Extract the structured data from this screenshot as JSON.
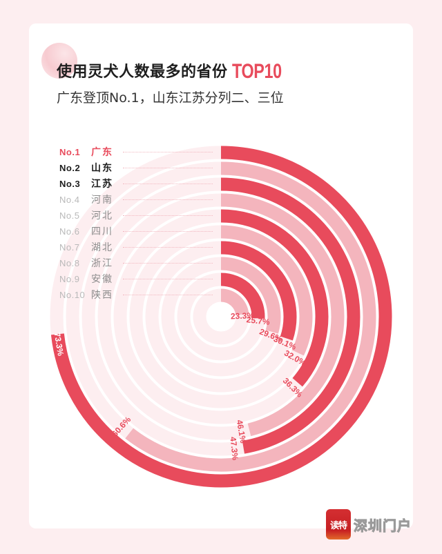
{
  "header": {
    "title": "使用灵犬人数最多的省份",
    "title_accent": "TOP10",
    "subtitle": "广东登顶No.1，山东江苏分列二、三位"
  },
  "ranking": [
    {
      "no": "No.1",
      "name": "广东",
      "style": "top1"
    },
    {
      "no": "No.2",
      "name": "山东",
      "style": "top3"
    },
    {
      "no": "No.3",
      "name": "江苏",
      "style": "top3"
    },
    {
      "no": "No.4",
      "name": "河南",
      "style": "rest"
    },
    {
      "no": "No.5",
      "name": "河北",
      "style": "rest"
    },
    {
      "no": "No.6",
      "name": "四川",
      "style": "rest"
    },
    {
      "no": "No.7",
      "name": "湖北",
      "style": "rest"
    },
    {
      "no": "No.8",
      "name": "浙江",
      "style": "rest"
    },
    {
      "no": "No.9",
      "name": "安徽",
      "style": "rest"
    },
    {
      "no": "No.10",
      "name": "陕西",
      "style": "rest"
    }
  ],
  "colors": {
    "dark_ring": "#e84b5c",
    "light_ring": "#f4b5bd",
    "track": "#fdeef0",
    "label": "#e84b5c",
    "top1_text": "#e84b5c",
    "top3_text": "#1e1e1e",
    "rest_text": "#b9b9b9",
    "rest_name": "#8c8c8c"
  },
  "chart_data": {
    "type": "radial-bar",
    "title": "使用灵犬人数最多的省份 TOP10",
    "subtitle": "广东登顶No.1，山东江苏分列二、三位",
    "categories": [
      "广东",
      "山东",
      "江苏",
      "河南",
      "河北",
      "四川",
      "湖北",
      "浙江",
      "安徽",
      "陕西"
    ],
    "values": [
      73.3,
      60.6,
      47.3,
      46.1,
      36.3,
      32.0,
      30.1,
      29.6,
      25.7,
      23.3
    ],
    "labels": [
      "73.3%",
      "60.6%",
      "47.3%",
      "46.1%",
      "36.3%",
      "32.0%",
      "30.1%",
      "29.6%",
      "25.7%",
      "23.3%"
    ],
    "unit": "%",
    "max": 100,
    "start_angle": "12 o'clock, clockwise",
    "ring_order": "outermost = No.1, innermost = No.10"
  },
  "branding": {
    "badge": "读特",
    "name": "深圳门户"
  }
}
